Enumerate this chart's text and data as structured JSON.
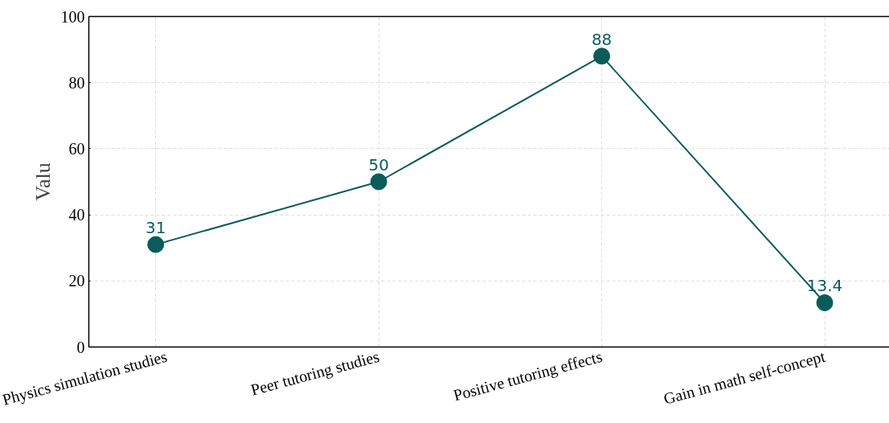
{
  "chart_data": {
    "type": "line",
    "ylabel": "Valu",
    "categories": [
      "Physics simulation studies",
      "Peer tutoring studies",
      "Positive tutoring effects",
      "Gain in math self-concept"
    ],
    "series": [
      {
        "color": "#0a5c5a",
        "values": [
          31,
          50,
          88,
          13.4
        ]
      }
    ],
    "ylim": [
      0,
      100
    ],
    "yticks": [
      0,
      20,
      40,
      60,
      80,
      100
    ],
    "grid": true,
    "marker": "circle",
    "line_style": "solid",
    "data_labels": true
  }
}
